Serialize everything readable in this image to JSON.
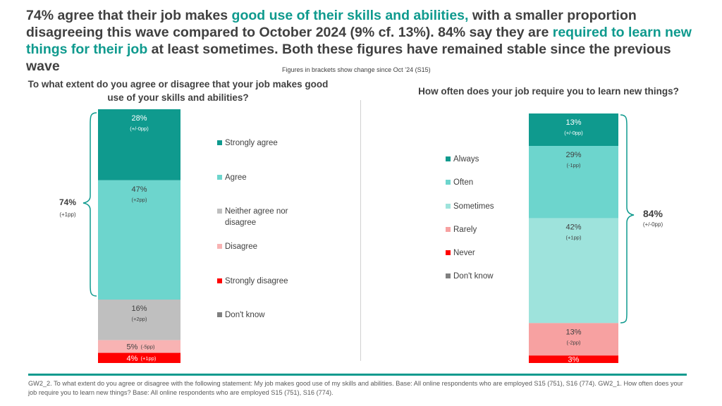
{
  "title": {
    "p1": "74% agree that their job makes ",
    "h1": "good use of their skills and abilities,",
    "p2": " with a smaller proportion disagreeing this wave compared to October 2024 (9% cf. 13%). 84% say they are ",
    "h2": "required to learn new things for their job",
    "p3": " at least sometimes. Both these figures have remained stable since the previous wave"
  },
  "note": "Figures in brackets show change since Oct ’24 (S15)",
  "footnote": "GW2_2. To what extent do you agree or disagree with the following statement: My job makes good use of my skills and abilities. Base: All online respondents who are employed S15 (751), S16 (774). GW2_1. How often does your job require you to learn new things? Base: All online respondents who are employed S15 (751), S16 (774).",
  "chart_data": [
    {
      "type": "bar",
      "stacked": true,
      "title": "To what extent do you agree or disagree that your job makes good use of your skills and abilities?",
      "series": [
        {
          "name": "Strongly agree",
          "value": 28,
          "label": "28%",
          "change": "(+/-0pp)",
          "color": "#0f9a8e"
        },
        {
          "name": "Agree",
          "value": 47,
          "label": "47%",
          "change": "(+2pp)",
          "color": "#6dd5cd"
        },
        {
          "name": "Neither agree nor disagree",
          "value": 16,
          "label": "16%",
          "change": "(+2pp)",
          "color": "#bfbfbf"
        },
        {
          "name": "Disagree",
          "value": 5,
          "label": "5%",
          "change": "(-5pp)",
          "color": "#f8b3b3"
        },
        {
          "name": "Strongly disagree",
          "value": 4,
          "label": "4%",
          "change": "(+1pp)",
          "color": "#ff0000"
        },
        {
          "name": "Don't know",
          "value": 0,
          "label": "",
          "change": "",
          "color": "#808080"
        }
      ],
      "total": {
        "value": "74%",
        "change": "(+1pp)"
      }
    },
    {
      "type": "bar",
      "stacked": true,
      "title": "How often does your job require you to learn new things?",
      "series": [
        {
          "name": "Always",
          "value": 13,
          "label": "13%",
          "change": "(+/-0pp)",
          "color": "#0f9a8e"
        },
        {
          "name": "Often",
          "value": 29,
          "label": "29%",
          "change": "(-1pp)",
          "color": "#6dd5cd"
        },
        {
          "name": "Sometimes",
          "value": 42,
          "label": "42%",
          "change": "(+1pp)",
          "color": "#9ee3dc"
        },
        {
          "name": "Rarely",
          "value": 13,
          "label": "13%",
          "change": "(-2pp)",
          "color": "#f7a1a1"
        },
        {
          "name": "Never",
          "value": 3,
          "label": "3%",
          "change": "",
          "color": "#ff0000"
        },
        {
          "name": "Don't know",
          "value": 0,
          "label": "",
          "change": "",
          "color": "#808080"
        }
      ],
      "total": {
        "value": "84%",
        "change": "(+/-0pp)"
      }
    }
  ]
}
